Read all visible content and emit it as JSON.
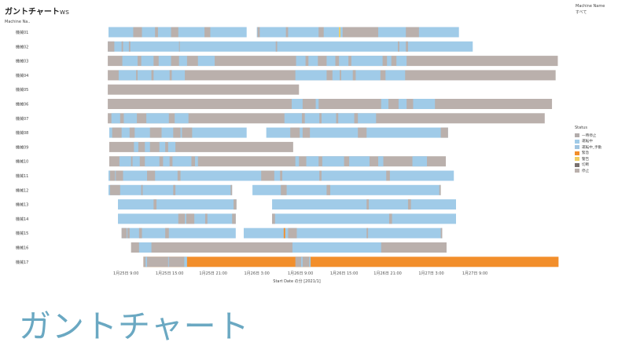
{
  "sheet": {
    "title": "ガントチャート",
    "title_suffix": "ws",
    "row_header": "Machine Na.."
  },
  "filter": {
    "title": "Machine Name",
    "value": "すべて"
  },
  "big_title": "ガントチャート",
  "chart_data": {
    "type": "gantt",
    "x_domain_hours": [
      -4,
      69
    ],
    "xlabel": "Start Date の分 [2021/1]",
    "ticks": [
      {
        "hour": 9,
        "label": "1月25日 9:00"
      },
      {
        "hour": 15,
        "label": "1月25日 15:00"
      },
      {
        "hour": 21,
        "label": "1月25日 21:00"
      },
      {
        "hour": 27,
        "label": "1月26日 3:00"
      },
      {
        "hour": 33,
        "label": "1月26日 9:00"
      },
      {
        "hour": 39,
        "label": "1月26日 15:00"
      },
      {
        "hour": 45,
        "label": "1月26日 21:00"
      },
      {
        "hour": 51,
        "label": "1月27日 3:00"
      },
      {
        "hour": 57,
        "label": "1月27日 9:00"
      }
    ],
    "legend_title": "Status",
    "statuses": [
      {
        "key": "s1",
        "name": "一時停止",
        "color": "#b2acab"
      },
      {
        "key": "s2",
        "name": "運転中",
        "color": "#a0cbe8"
      },
      {
        "key": "s3",
        "name": "運転中_手動",
        "color": "#a0c4e0"
      },
      {
        "key": "s4",
        "name": "緊急",
        "color": "#f28e2b"
      },
      {
        "key": "s5",
        "name": "警告",
        "color": "#f1ce63"
      },
      {
        "key": "s6",
        "name": "切断",
        "color": "#79706e"
      },
      {
        "key": "s7",
        "name": "停止",
        "color": "#bab0ac"
      }
    ],
    "machines": [
      {
        "name": "機械01",
        "segments": [
          [
            6.6,
            25.6,
            "s2"
          ],
          [
            10,
            11.2,
            "s7"
          ],
          [
            13,
            13.4,
            "s7"
          ],
          [
            15.2,
            16.2,
            "s7"
          ],
          [
            19.8,
            20.6,
            "s7"
          ],
          [
            27,
            54.8,
            "s2"
          ],
          [
            27.1,
            27.4,
            "s7"
          ],
          [
            31,
            31.3,
            "s7"
          ],
          [
            35.5,
            36.2,
            "s7"
          ],
          [
            38.3,
            38.5,
            "s5"
          ],
          [
            38.8,
            43.7,
            "s7"
          ],
          [
            47.5,
            49.3,
            "s7"
          ]
        ]
      },
      {
        "name": "機械02",
        "segments": [
          [
            6.5,
            56.7,
            "s2"
          ],
          [
            6.5,
            7.4,
            "s7"
          ],
          [
            8.4,
            8.6,
            "s7"
          ],
          [
            9.4,
            9.6,
            "s7"
          ],
          [
            16.3,
            16.4,
            "s7"
          ],
          [
            29.6,
            29.8,
            "s7"
          ],
          [
            46.4,
            46.6,
            "s7"
          ],
          [
            47.5,
            47.8,
            "s7"
          ]
        ]
      },
      {
        "name": "機械03",
        "segments": [
          [
            6.5,
            68.4,
            "s7"
          ],
          [
            8.5,
            10.6,
            "s2"
          ],
          [
            11.1,
            12.8,
            "s2"
          ],
          [
            13.5,
            15.2,
            "s2"
          ],
          [
            16.3,
            17.4,
            "s2"
          ],
          [
            18.9,
            21.2,
            "s2"
          ],
          [
            32.4,
            33.7,
            "s2"
          ],
          [
            34.1,
            35.4,
            "s2"
          ],
          [
            36.6,
            37.8,
            "s2"
          ],
          [
            38.3,
            39.6,
            "s2"
          ],
          [
            40,
            44.3,
            "s2"
          ],
          [
            44.9,
            45.5,
            "s2"
          ],
          [
            46.2,
            47.6,
            "s2"
          ]
        ]
      },
      {
        "name": "機械04",
        "segments": [
          [
            6.5,
            68.1,
            "s7"
          ],
          [
            8,
            17.1,
            "s2"
          ],
          [
            10.4,
            10.6,
            "s7"
          ],
          [
            12.5,
            12.8,
            "s7"
          ],
          [
            15,
            15.3,
            "s7"
          ],
          [
            32.3,
            36.6,
            "s2"
          ],
          [
            37.4,
            44,
            "s2"
          ],
          [
            38.4,
            38.6,
            "s7"
          ],
          [
            40.2,
            40.6,
            "s7"
          ],
          [
            44.7,
            47.4,
            "s2"
          ]
        ]
      },
      {
        "name": "機械05",
        "segments": [
          [
            6.5,
            32.8,
            "s7"
          ]
        ]
      },
      {
        "name": "機械06",
        "segments": [
          [
            6.5,
            67.6,
            "s7"
          ],
          [
            31.8,
            33.3,
            "s2"
          ],
          [
            35.1,
            35.5,
            "s2"
          ],
          [
            44.1,
            45.1,
            "s2"
          ],
          [
            46.5,
            47.6,
            "s2"
          ],
          [
            48.5,
            51.5,
            "s2"
          ]
        ]
      },
      {
        "name": "機械07",
        "segments": [
          [
            6.5,
            66.6,
            "s7"
          ],
          [
            7,
            8.2,
            "s2"
          ],
          [
            8.7,
            10.5,
            "s2"
          ],
          [
            11.8,
            14.9,
            "s2"
          ],
          [
            15.7,
            17.6,
            "s2"
          ],
          [
            30.8,
            43.4,
            "s2"
          ],
          [
            33.2,
            33.6,
            "s7"
          ],
          [
            35.6,
            35.9,
            "s7"
          ],
          [
            37.9,
            38.2,
            "s7"
          ],
          [
            40.4,
            40.9,
            "s7"
          ]
        ]
      },
      {
        "name": "機械08",
        "segments": [
          [
            6.7,
            25.6,
            "s2"
          ],
          [
            7.1,
            8.4,
            "s7"
          ],
          [
            9.5,
            10.2,
            "s7"
          ],
          [
            12.3,
            13.9,
            "s7"
          ],
          [
            15.5,
            16.5,
            "s7"
          ],
          [
            16.7,
            18.1,
            "s7"
          ],
          [
            28.3,
            53.3,
            "s2"
          ],
          [
            31.6,
            32.9,
            "s7"
          ],
          [
            33.3,
            34.3,
            "s7"
          ],
          [
            40.9,
            42.1,
            "s7"
          ],
          [
            52.3,
            53.3,
            "s7"
          ]
        ]
      },
      {
        "name": "機械09",
        "segments": [
          [
            6.7,
            32,
            "s7"
          ],
          [
            10.1,
            10.7,
            "s2"
          ],
          [
            11.6,
            12.3,
            "s2"
          ],
          [
            13.6,
            14.4,
            "s2"
          ],
          [
            14.8,
            15.8,
            "s2"
          ]
        ]
      },
      {
        "name": "機械10",
        "segments": [
          [
            6.7,
            53,
            "s7"
          ],
          [
            8.1,
            9.7,
            "s2"
          ],
          [
            9.9,
            10.9,
            "s2"
          ],
          [
            11.6,
            13.6,
            "s2"
          ],
          [
            14.1,
            15,
            "s2"
          ],
          [
            15.4,
            18,
            "s2"
          ],
          [
            18.5,
            18.9,
            "s2"
          ],
          [
            32.3,
            32.8,
            "s2"
          ],
          [
            33.8,
            35.5,
            "s2"
          ],
          [
            36,
            39,
            "s2"
          ],
          [
            39.7,
            42.5,
            "s2"
          ],
          [
            43.7,
            44.4,
            "s2"
          ],
          [
            48.4,
            50.4,
            "s2"
          ]
        ]
      },
      {
        "name": "機械11",
        "segments": [
          [
            6.6,
            54.1,
            "s2"
          ],
          [
            6.8,
            7.5,
            "s7"
          ],
          [
            7.6,
            8.6,
            "s7"
          ],
          [
            11.9,
            13,
            "s7"
          ],
          [
            16.1,
            16.5,
            "s7"
          ],
          [
            27.6,
            29.4,
            "s7"
          ],
          [
            30.2,
            30.5,
            "s7"
          ],
          [
            35.6,
            35.9,
            "s7"
          ],
          [
            44.8,
            45.3,
            "s7"
          ]
        ]
      },
      {
        "name": "機械12",
        "segments": [
          [
            6.6,
            23.6,
            "s2"
          ],
          [
            6.8,
            8.2,
            "s7"
          ],
          [
            11.1,
            11.3,
            "s7"
          ],
          [
            15.5,
            15.8,
            "s7"
          ],
          [
            23.4,
            23.6,
            "s7"
          ],
          [
            26.4,
            52.3,
            "s2"
          ],
          [
            30.3,
            31.1,
            "s7"
          ],
          [
            36.6,
            37.1,
            "s7"
          ],
          [
            52.1,
            52.3,
            "s7"
          ]
        ]
      },
      {
        "name": "機械13",
        "segments": [
          [
            7.9,
            24.2,
            "s2"
          ],
          [
            12.8,
            13.2,
            "s7"
          ],
          [
            23.8,
            24.2,
            "s7"
          ],
          [
            29.1,
            54.4,
            "s2"
          ],
          [
            42.1,
            42.4,
            "s7"
          ],
          [
            47.8,
            48.2,
            "s7"
          ]
        ]
      },
      {
        "name": "機械14",
        "segments": [
          [
            7.9,
            24.1,
            "s2"
          ],
          [
            16.2,
            17.1,
            "s7"
          ],
          [
            17.3,
            18.4,
            "s7"
          ],
          [
            19.9,
            20.2,
            "s7"
          ],
          [
            23.6,
            24.1,
            "s7"
          ],
          [
            29.1,
            54.4,
            "s2"
          ],
          [
            29.1,
            29.5,
            "s7"
          ],
          [
            45.2,
            45.6,
            "s7"
          ]
        ]
      },
      {
        "name": "機械15",
        "segments": [
          [
            8.4,
            24.1,
            "s2"
          ],
          [
            8.4,
            9.1,
            "s7"
          ],
          [
            9.2,
            9.5,
            "s7"
          ],
          [
            10.8,
            11.2,
            "s7"
          ],
          [
            14.4,
            14.9,
            "s7"
          ],
          [
            25.2,
            52.5,
            "s2"
          ],
          [
            30.7,
            30.9,
            "s4"
          ],
          [
            31.3,
            32.5,
            "s7"
          ],
          [
            42.1,
            42.3,
            "s7"
          ],
          [
            52.3,
            52.5,
            "s7"
          ]
        ]
      },
      {
        "name": "機械16",
        "segments": [
          [
            9.7,
            53.1,
            "s7"
          ],
          [
            10.8,
            12.5,
            "s2"
          ],
          [
            31.9,
            44.1,
            "s2"
          ]
        ]
      },
      {
        "name": "機械17",
        "segments": [
          [
            11.4,
            68.5,
            "s4"
          ],
          [
            11.4,
            17,
            "s7"
          ],
          [
            11.7,
            11.9,
            "s2"
          ],
          [
            14.8,
            14.9,
            "s2"
          ],
          [
            17,
            17.4,
            "s2"
          ],
          [
            32.3,
            34.2,
            "s7"
          ],
          [
            33.1,
            33.3,
            "s2"
          ],
          [
            34.2,
            34.4,
            "s2"
          ]
        ]
      }
    ]
  }
}
